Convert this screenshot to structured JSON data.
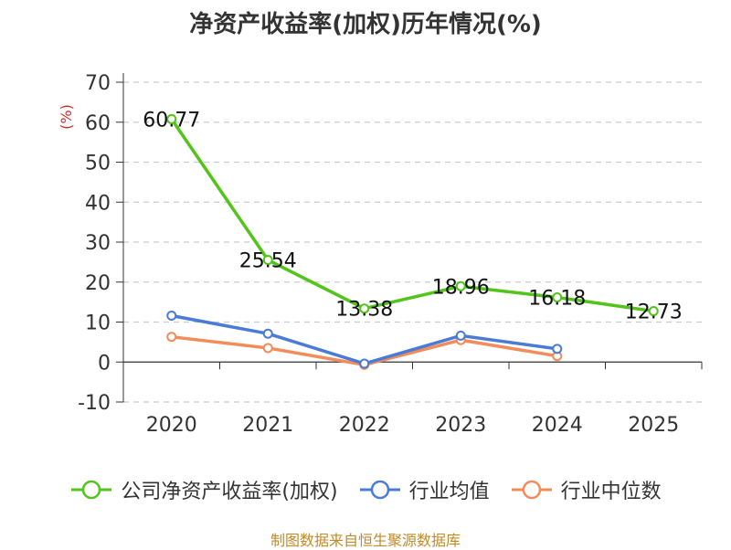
{
  "title": "净资产收益率(加权)历年情况(%)",
  "source": "制图数据来自恒生聚源数据库",
  "chart_data": {
    "type": "line",
    "title": "净资产收益率(加权)历年情况(%)",
    "xlabel": "",
    "ylabel": "(%)",
    "categories": [
      "2020",
      "2021",
      "2022",
      "2023",
      "2024",
      "2025"
    ],
    "ylim": [
      -10,
      70
    ],
    "yticks": [
      -10,
      0,
      10,
      20,
      30,
      40,
      50,
      60,
      70
    ],
    "grid": true,
    "legend_position": "bottom",
    "series": [
      {
        "name": "公司净资产收益率(加权)",
        "color": "#52c41a",
        "values": [
          60.77,
          25.54,
          13.38,
          18.96,
          16.18,
          12.73
        ],
        "labels": [
          "60.77",
          "25.54",
          "13.38",
          "18.96",
          "16.18",
          "12.73"
        ]
      },
      {
        "name": "行业均值",
        "color": "#4a7bd6",
        "values": [
          11.6,
          7.1,
          -0.4,
          6.6,
          3.3,
          null
        ]
      },
      {
        "name": "行业中位数",
        "color": "#f28c5a",
        "values": [
          6.3,
          3.5,
          -0.7,
          5.5,
          1.5,
          null
        ]
      }
    ]
  }
}
